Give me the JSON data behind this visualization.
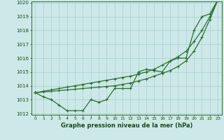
{
  "x": [
    0,
    1,
    2,
    3,
    4,
    5,
    6,
    7,
    8,
    9,
    10,
    11,
    12,
    13,
    14,
    15,
    16,
    17,
    18,
    19,
    20,
    21,
    22,
    23
  ],
  "line1": [
    1013.5,
    1013.2,
    1013.0,
    1012.6,
    1012.2,
    1012.2,
    1012.2,
    1013.0,
    1012.8,
    1013.0,
    1013.8,
    1013.8,
    1013.8,
    1015.0,
    1015.2,
    1015.1,
    1015.0,
    1015.8,
    1016.0,
    1016.0,
    1018.0,
    1019.0,
    1019.2,
    1020.2
  ],
  "line2": [
    1013.5,
    1013.6,
    1013.7,
    1013.8,
    1013.9,
    1014.0,
    1014.1,
    1014.2,
    1014.3,
    1014.4,
    1014.5,
    1014.6,
    1014.7,
    1014.85,
    1015.0,
    1015.2,
    1015.5,
    1015.8,
    1016.1,
    1016.5,
    1017.2,
    1018.0,
    1019.0,
    1020.2
  ],
  "line3": [
    1013.5,
    1013.55,
    1013.6,
    1013.65,
    1013.7,
    1013.75,
    1013.8,
    1013.85,
    1013.9,
    1013.95,
    1014.0,
    1014.1,
    1014.2,
    1014.35,
    1014.5,
    1014.7,
    1014.9,
    1015.1,
    1015.4,
    1015.8,
    1016.5,
    1017.5,
    1018.8,
    1020.2
  ],
  "ylim": [
    1012,
    1020
  ],
  "xlim": [
    -0.5,
    23.5
  ],
  "yticks": [
    1012,
    1013,
    1014,
    1015,
    1016,
    1017,
    1018,
    1019,
    1020
  ],
  "xticks": [
    0,
    1,
    2,
    3,
    4,
    5,
    6,
    7,
    8,
    9,
    10,
    11,
    12,
    13,
    14,
    15,
    16,
    17,
    18,
    19,
    20,
    21,
    22,
    23
  ],
  "xlabel": "Graphe pression niveau de la mer (hPa)",
  "line_color": "#2d6e2d",
  "bg_color": "#cce8e8",
  "grid_color": "#aacfcf",
  "marker": "+",
  "marker_size": 3,
  "linewidth": 0.9
}
